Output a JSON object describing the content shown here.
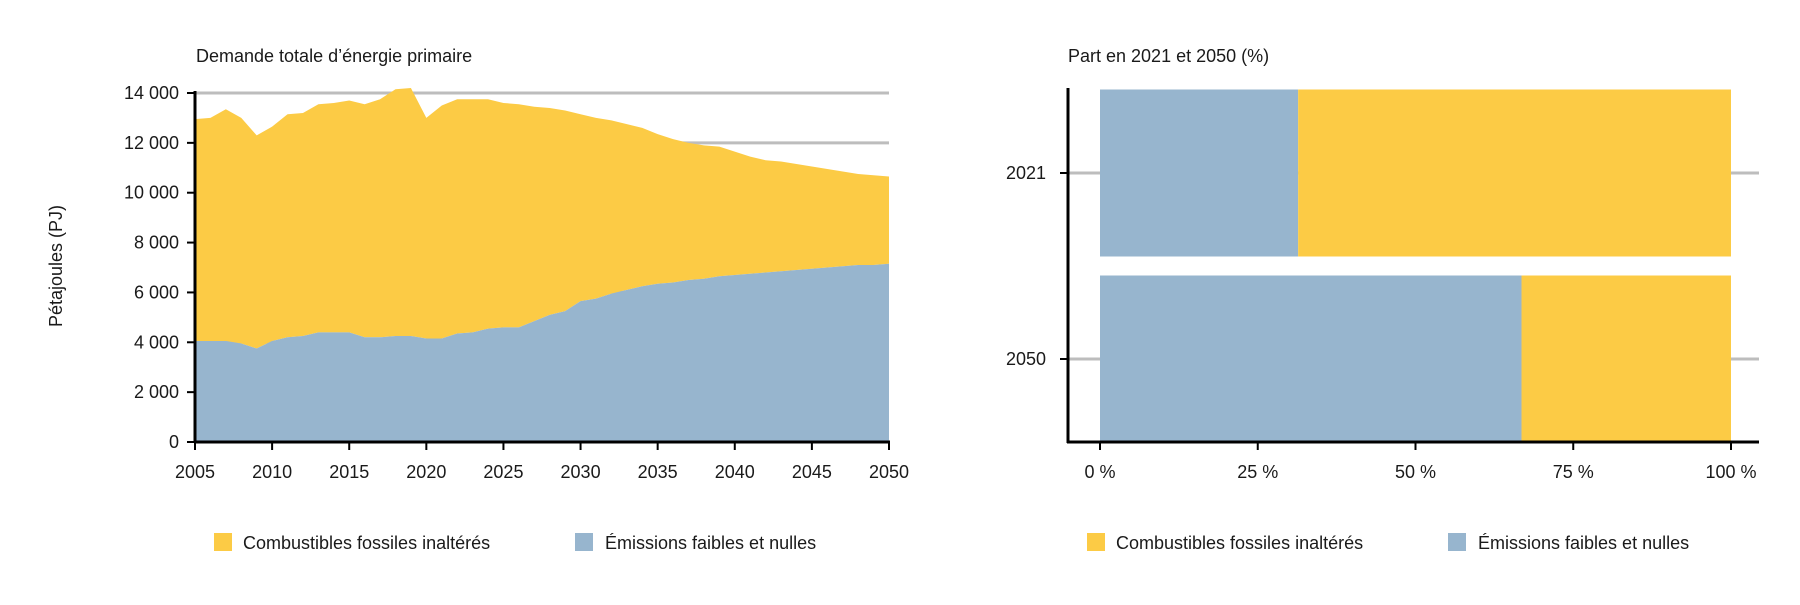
{
  "colors": {
    "fossil": "#FCCB45",
    "low": "#97B5CE",
    "grid": "#BDBDBD",
    "axis": "#000000"
  },
  "chart_data": [
    {
      "type": "area",
      "title": "Demande totale d’énergie primaire",
      "ylabel": "Pétajoules (PJ)",
      "xlabel": "",
      "ylim": [
        0,
        14000
      ],
      "yticks": [
        0,
        2000,
        4000,
        6000,
        8000,
        10000,
        12000,
        14000
      ],
      "ytick_labels": [
        "0",
        "2 000",
        "4 000",
        "6 000",
        "8 000",
        "10 000",
        "12 000",
        "14 000"
      ],
      "xticks": [
        2005,
        2010,
        2015,
        2020,
        2025,
        2030,
        2035,
        2040,
        2045,
        2050
      ],
      "grid": "horizontal",
      "x": [
        2005,
        2006,
        2007,
        2008,
        2009,
        2010,
        2011,
        2012,
        2013,
        2014,
        2015,
        2016,
        2017,
        2018,
        2019,
        2020,
        2021,
        2022,
        2023,
        2024,
        2025,
        2026,
        2027,
        2028,
        2029,
        2030,
        2031,
        2032,
        2033,
        2034,
        2035,
        2036,
        2037,
        2038,
        2039,
        2040,
        2041,
        2042,
        2043,
        2044,
        2045,
        2046,
        2047,
        2048,
        2049,
        2050
      ],
      "series": [
        {
          "name": "Émissions faibles et nulles",
          "color": "#97B5CE",
          "values": [
            4050,
            4050,
            4050,
            3950,
            3750,
            4050,
            4200,
            4250,
            4400,
            4400,
            4400,
            4200,
            4200,
            4250,
            4250,
            4150,
            4150,
            4350,
            4400,
            4550,
            4600,
            4600,
            4850,
            5100,
            5250,
            5650,
            5750,
            5950,
            6100,
            6250,
            6350,
            6400,
            6500,
            6550,
            6650,
            6700,
            6750,
            6800,
            6850,
            6900,
            6950,
            7000,
            7050,
            7100,
            7100,
            7150
          ]
        },
        {
          "name": "Combustibles fossiles inaltérés",
          "color": "#FCCB45",
          "values": [
            8900,
            8950,
            9300,
            9050,
            8550,
            8600,
            8950,
            8950,
            9150,
            9200,
            9300,
            9350,
            9550,
            9900,
            9950,
            8850,
            9350,
            9400,
            9350,
            9200,
            9000,
            8950,
            8600,
            8300,
            8050,
            7500,
            7250,
            6950,
            6650,
            6350,
            6000,
            5750,
            5500,
            5350,
            5200,
            4950,
            4700,
            4500,
            4400,
            4250,
            4100,
            3950,
            3800,
            3650,
            3600,
            3500
          ]
        }
      ],
      "legend": [
        "Combustibles fossiles inaltérés",
        "Émissions faibles et nulles"
      ],
      "legend_position": "bottom"
    },
    {
      "type": "bar",
      "orientation": "horizontal",
      "stacked": true,
      "title": "Part en 2021 et 2050 (%)",
      "categories": [
        "2021",
        "2050"
      ],
      "xlim": [
        0,
        100
      ],
      "xticks": [
        0,
        25,
        50,
        75,
        100
      ],
      "xtick_labels": [
        "0 %",
        "25 %",
        "50 %",
        "75 %",
        "100 %"
      ],
      "grid": "horizontal",
      "series": [
        {
          "name": "Émissions faibles et nulles",
          "color": "#97B5CE",
          "values": [
            31.4,
            66.8
          ]
        },
        {
          "name": "Combustibles fossiles inaltérés",
          "color": "#FCCB45",
          "values": [
            68.6,
            33.2
          ]
        }
      ],
      "legend": [
        "Combustibles fossiles inaltérés",
        "Émissions faibles et nulles"
      ],
      "legend_position": "bottom"
    }
  ]
}
